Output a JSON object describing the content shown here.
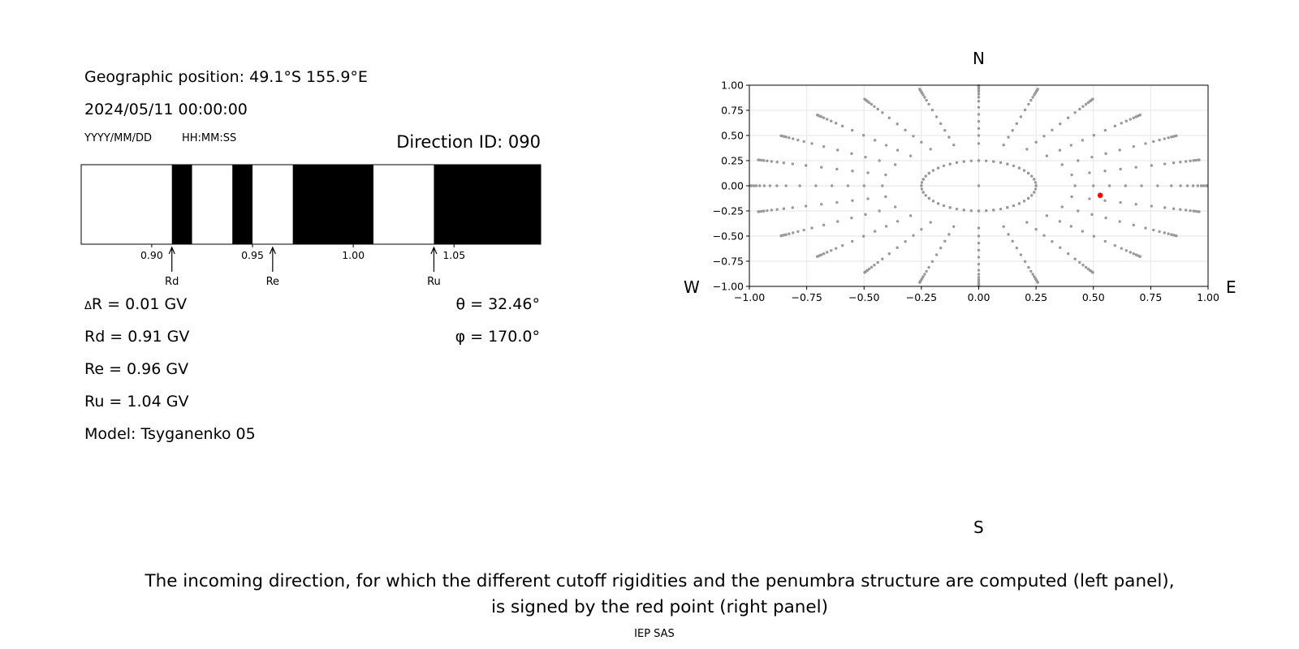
{
  "left_panel": {
    "geo_position": "Geographic position: 49.1°S 155.9°E",
    "datetime": "2024/05/11 00:00:00",
    "date_format": "YYYY/MM/DD",
    "time_format": "HH:MM:SS",
    "direction_id": "Direction ID: 090",
    "delta_r": "R = 0.01 GV",
    "delta_symbol": "Δ",
    "rd": "Rd = 0.91 GV",
    "re": "Re = 0.96 GV",
    "ru": "Ru = 1.04 GV",
    "model": "Model: Tsyganenko 05",
    "theta": "θ = 32.46°",
    "phi": "φ = 170.0°"
  },
  "right_panel": {
    "compass": {
      "north": "N",
      "south": "S",
      "west": "W",
      "east": "E"
    }
  },
  "caption": {
    "line1": "The incoming direction, for which the different cutoff rigidities and the penumbra structure are computed (left panel),",
    "line2": "is signed by the red point (right panel)"
  },
  "footer": "IEP SAS",
  "chart_data": [
    {
      "type": "bar",
      "name": "penumbra",
      "xlim": [
        0.865,
        1.093
      ],
      "xticks": [
        0.9,
        0.95,
        1.0,
        1.05
      ],
      "xtick_labels": [
        "0.90",
        "0.95",
        "1.00",
        "1.05"
      ],
      "forbidden_bands": [
        [
          0.91,
          0.92
        ],
        [
          0.94,
          0.95
        ],
        [
          0.97,
          1.01
        ],
        [
          1.04,
          1.093
        ]
      ],
      "markers": [
        {
          "label": "Rd",
          "value": 0.91
        },
        {
          "label": "Re",
          "value": 0.96
        },
        {
          "label": "Ru",
          "value": 1.04
        }
      ],
      "colors": {
        "forbidden": "#000000",
        "allowed": "#ffffff"
      }
    },
    {
      "type": "scatter",
      "name": "directions",
      "xlim": [
        -1,
        1
      ],
      "ylim": [
        -1,
        1
      ],
      "xticks": [
        -1.0,
        -0.75,
        -0.5,
        -0.25,
        0.0,
        0.25,
        0.5,
        0.75,
        1.0
      ],
      "xtick_labels": [
        "−1.00",
        "−0.75",
        "−0.50",
        "−0.25",
        "0.00",
        "0.25",
        "0.50",
        "0.75",
        "1.00"
      ],
      "yticks": [
        1.0,
        0.75,
        0.5,
        0.25,
        0.0,
        -0.25,
        -0.5,
        -0.75,
        -1.0
      ],
      "ytick_labels": [
        "1.00",
        "0.75",
        "0.50",
        "0.25",
        "0.00",
        "−0.25",
        "−0.50",
        "−0.75",
        "−1.00"
      ],
      "grid": true,
      "ray_count": 24,
      "ring_radii_ratio": [
        0.0,
        0.25,
        0.42,
        0.5,
        0.57,
        0.64,
        0.71,
        0.78,
        0.84,
        0.88,
        0.91,
        0.935,
        0.955,
        0.97,
        0.98,
        0.99,
        0.995
      ],
      "inner_circle_radius": 0.25,
      "inner_circle_points": 48,
      "direction_colors": {
        "grid_points": "#999999",
        "selected": "#ff0000"
      },
      "selected_point": {
        "x": 0.53,
        "y": -0.095
      }
    }
  ]
}
